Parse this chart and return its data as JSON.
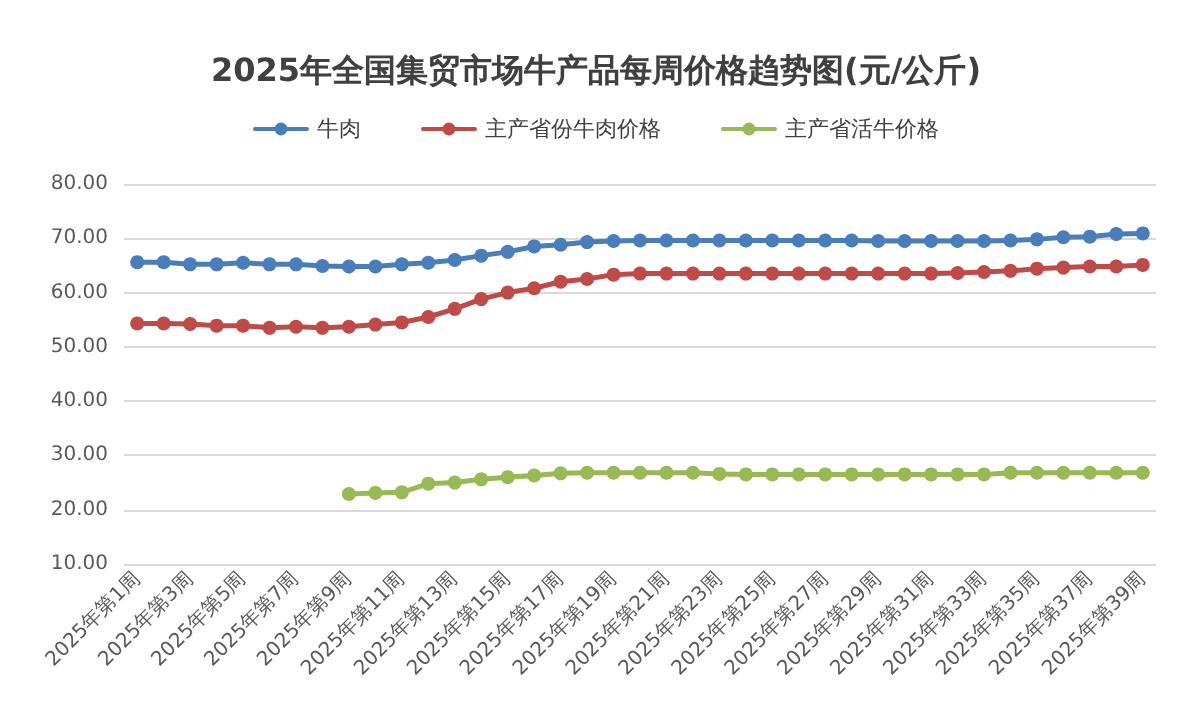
{
  "chart_data": {
    "type": "line",
    "title": "2025年全国集贸市场牛产品每周价格趋势图(元/公斤)",
    "categories": [
      "2025年第1周",
      null,
      "2025年第3周",
      null,
      "2025年第5周",
      null,
      "2025年第7周",
      null,
      "2025年第9周",
      null,
      "2025年第11周",
      null,
      "2025年第13周",
      null,
      "2025年第15周",
      null,
      "2025年第17周",
      null,
      "2025年第19周",
      null,
      "2025年第21周",
      null,
      "2025年第23周",
      null,
      "2025年第25周",
      null,
      "2025年第27周",
      null,
      "2025年第29周",
      null,
      "2025年第31周",
      null,
      "2025年第33周",
      null,
      "2025年第35周",
      null,
      "2025年第37周",
      null,
      "2025年第39周"
    ],
    "series": [
      {
        "name": "牛肉",
        "color": "#4a7ebb",
        "values": [
          65.6,
          65.6,
          65.2,
          65.2,
          65.5,
          65.2,
          65.2,
          64.9,
          64.8,
          64.8,
          65.2,
          65.5,
          66,
          66.8,
          67.5,
          68.5,
          68.8,
          69.3,
          69.5,
          69.6,
          69.6,
          69.6,
          69.6,
          69.6,
          69.6,
          69.6,
          69.6,
          69.6,
          69.5,
          69.5,
          69.5,
          69.5,
          69.5,
          69.6,
          69.8,
          70.2,
          70.3,
          70.8,
          70.9
        ]
      },
      {
        "name": "主产省份牛肉价格",
        "color": "#be4b48",
        "values": [
          54.3,
          54.3,
          54.2,
          53.9,
          53.9,
          53.5,
          53.7,
          53.5,
          53.7,
          54.1,
          54.5,
          55.5,
          57,
          58.8,
          60,
          60.8,
          62,
          62.5,
          63.3,
          63.5,
          63.5,
          63.5,
          63.5,
          63.5,
          63.5,
          63.5,
          63.5,
          63.5,
          63.5,
          63.5,
          63.5,
          63.6,
          63.8,
          64,
          64.4,
          64.6,
          64.8,
          64.8,
          65.1
        ]
      },
      {
        "name": "主产省活牛价格",
        "color": "#98b954",
        "values": [
          null,
          null,
          null,
          null,
          null,
          null,
          null,
          null,
          22.9,
          23.1,
          23.2,
          24.8,
          25,
          25.6,
          26,
          26.3,
          26.7,
          26.8,
          26.8,
          26.8,
          26.8,
          26.8,
          26.6,
          26.5,
          26.5,
          26.5,
          26.5,
          26.5,
          26.5,
          26.5,
          26.5,
          26.5,
          26.5,
          26.8,
          26.8,
          26.8,
          26.8,
          26.8,
          26.8
        ]
      }
    ],
    "ylim": [
      10,
      80
    ],
    "yticks": [
      {
        "value": 10,
        "label": "10.00"
      },
      {
        "value": 20,
        "label": "20.00"
      },
      {
        "value": 30,
        "label": "30.00"
      },
      {
        "value": 40,
        "label": "40.00"
      },
      {
        "value": 50,
        "label": "50.00"
      },
      {
        "value": 60,
        "label": "60.00"
      },
      {
        "value": 70,
        "label": "70.00"
      },
      {
        "value": 80,
        "label": "80.00"
      }
    ],
    "grid": "y",
    "legend": "top",
    "marker": "circle",
    "line_style": "solid"
  }
}
